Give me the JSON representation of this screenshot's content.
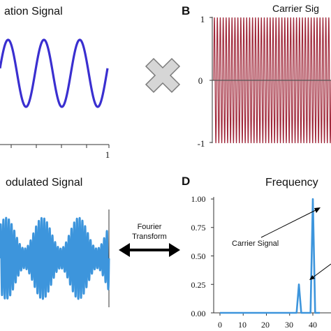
{
  "panels": {
    "A": {
      "letter": "",
      "title": "ation Signal",
      "x_tick_end": "1",
      "color": "#3a2fd0",
      "cycles": 3
    },
    "B": {
      "letter": "B",
      "title": "Carrier Sig",
      "y_ticks": [
        "1",
        "0",
        "-1"
      ],
      "color": "#a0283a",
      "cycles": 40
    },
    "C": {
      "letter": "",
      "title": "odulated Signal",
      "color": "#3d95dc",
      "carrier_cycles": 40,
      "modulation_cycles": 3
    },
    "D": {
      "letter": "D",
      "title": "Frequency",
      "y_ticks": [
        "1.00",
        "0.75",
        "0.50",
        "0.25",
        "0.00"
      ],
      "x_ticks": [
        "0",
        "10",
        "20",
        "30",
        "40"
      ],
      "color": "#3d95dc",
      "annotation_carrier": "Carrier Signal"
    }
  },
  "operator": {
    "icon": "multiply-cross-icon",
    "color": "#d6d6d6"
  },
  "fourier": {
    "line1": "Fourier",
    "line2": "Transform"
  },
  "chart_data": [
    {
      "type": "line",
      "name": "A",
      "title": "ation Signal",
      "x": [
        0,
        1
      ],
      "ylim": [
        -1,
        1
      ],
      "series": [
        {
          "frequency_cycles": 3,
          "amplitude": 1
        }
      ]
    },
    {
      "type": "line",
      "name": "B",
      "title": "Carrier Sig",
      "x": [
        0,
        1
      ],
      "ylim": [
        -1,
        1
      ],
      "series": [
        {
          "frequency_cycles": 40,
          "amplitude": 1
        }
      ]
    },
    {
      "type": "line",
      "name": "C",
      "title": "odulated Signal",
      "x": [
        0,
        1
      ],
      "series": [
        {
          "carrier_cycles": 40,
          "modulation_cycles": 3
        }
      ]
    },
    {
      "type": "line",
      "name": "D",
      "title": "Frequency",
      "xlim": [
        0,
        43
      ],
      "ylim": [
        0,
        1
      ],
      "peaks": [
        {
          "x": 34,
          "y": 0.25
        },
        {
          "x": 40,
          "y": 1.0
        }
      ]
    }
  ]
}
